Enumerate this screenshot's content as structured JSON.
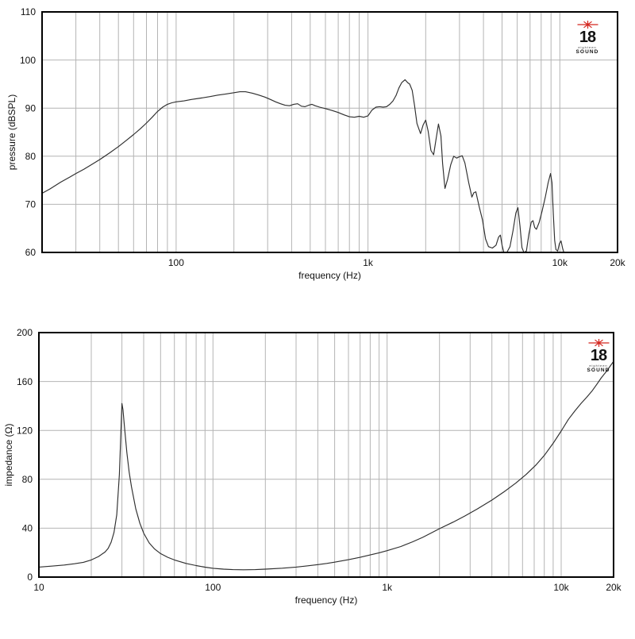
{
  "page": {
    "background": "#ffffff"
  },
  "logo": {
    "number": "18",
    "tagline": "eighteen",
    "brand": "SOUND",
    "star_color": "#d4261f",
    "text_color": "#121212"
  },
  "chart_data": [
    {
      "id": "pressure",
      "type": "line",
      "xlabel": "frequency (Hz)",
      "ylabel": "pressure (dBSPL)",
      "x_scale": "log",
      "xlim": [
        20,
        20000
      ],
      "ylim": [
        60,
        110
      ],
      "y_ticks": [
        60,
        70,
        80,
        90,
        100,
        110
      ],
      "x_tick_labels": [
        {
          "value": 100,
          "label": "100"
        },
        {
          "value": 1000,
          "label": "1k"
        },
        {
          "value": 10000,
          "label": "10k"
        },
        {
          "value": 20000,
          "label": "20k"
        }
      ],
      "grid": true,
      "grid_color": "#b4b4b4",
      "line_color": "#2e2e2e",
      "series": [
        {
          "name": "pressure",
          "points": [
            [
              20,
              72.3
            ],
            [
              22,
              73.2
            ],
            [
              25,
              74.6
            ],
            [
              28,
              75.7
            ],
            [
              30,
              76.4
            ],
            [
              33,
              77.3
            ],
            [
              36,
              78.2
            ],
            [
              40,
              79.3
            ],
            [
              45,
              80.7
            ],
            [
              50,
              82.0
            ],
            [
              55,
              83.3
            ],
            [
              60,
              84.5
            ],
            [
              65,
              85.7
            ],
            [
              70,
              86.9
            ],
            [
              75,
              88.1
            ],
            [
              80,
              89.3
            ],
            [
              85,
              90.2
            ],
            [
              90,
              90.8
            ],
            [
              95,
              91.1
            ],
            [
              100,
              91.3
            ],
            [
              110,
              91.5
            ],
            [
              120,
              91.8
            ],
            [
              135,
              92.1
            ],
            [
              150,
              92.4
            ],
            [
              165,
              92.7
            ],
            [
              180,
              92.9
            ],
            [
              200,
              93.2
            ],
            [
              215,
              93.4
            ],
            [
              230,
              93.4
            ],
            [
              250,
              93.1
            ],
            [
              270,
              92.7
            ],
            [
              290,
              92.3
            ],
            [
              310,
              91.8
            ],
            [
              330,
              91.3
            ],
            [
              350,
              90.9
            ],
            [
              370,
              90.6
            ],
            [
              390,
              90.5
            ],
            [
              410,
              90.8
            ],
            [
              430,
              90.9
            ],
            [
              450,
              90.4
            ],
            [
              470,
              90.3
            ],
            [
              490,
              90.6
            ],
            [
              510,
              90.8
            ],
            [
              530,
              90.5
            ],
            [
              560,
              90.2
            ],
            [
              600,
              89.9
            ],
            [
              650,
              89.5
            ],
            [
              700,
              89.1
            ],
            [
              750,
              88.6
            ],
            [
              800,
              88.2
            ],
            [
              850,
              88.1
            ],
            [
              900,
              88.3
            ],
            [
              950,
              88.1
            ],
            [
              1000,
              88.4
            ],
            [
              1050,
              89.6
            ],
            [
              1100,
              90.2
            ],
            [
              1150,
              90.3
            ],
            [
              1200,
              90.2
            ],
            [
              1250,
              90.3
            ],
            [
              1300,
              90.8
            ],
            [
              1350,
              91.5
            ],
            [
              1400,
              92.6
            ],
            [
              1450,
              94.2
            ],
            [
              1500,
              95.3
            ],
            [
              1560,
              95.9
            ],
            [
              1610,
              95.3
            ],
            [
              1650,
              95.0
            ],
            [
              1700,
              93.7
            ],
            [
              1750,
              90.5
            ],
            [
              1800,
              86.8
            ],
            [
              1880,
              84.7
            ],
            [
              1940,
              86.5
            ],
            [
              2000,
              87.5
            ],
            [
              2060,
              85.2
            ],
            [
              2130,
              81.2
            ],
            [
              2200,
              80.3
            ],
            [
              2270,
              83.8
            ],
            [
              2330,
              86.7
            ],
            [
              2400,
              84.2
            ],
            [
              2450,
              78.5
            ],
            [
              2520,
              73.3
            ],
            [
              2600,
              75.2
            ],
            [
              2700,
              78.2
            ],
            [
              2800,
              80.0
            ],
            [
              2900,
              79.6
            ],
            [
              3000,
              79.9
            ],
            [
              3100,
              80.1
            ],
            [
              3200,
              78.6
            ],
            [
              3350,
              74.5
            ],
            [
              3480,
              71.5
            ],
            [
              3560,
              72.4
            ],
            [
              3650,
              72.6
            ],
            [
              3800,
              69.5
            ],
            [
              3950,
              66.8
            ],
            [
              4100,
              62.8
            ],
            [
              4250,
              61.2
            ],
            [
              4450,
              60.9
            ],
            [
              4650,
              61.5
            ],
            [
              4800,
              63.2
            ],
            [
              4900,
              63.6
            ],
            [
              5000,
              61.5
            ],
            [
              5100,
              60.1
            ],
            [
              5300,
              60.0
            ],
            [
              5500,
              61.2
            ],
            [
              5700,
              64.5
            ],
            [
              5900,
              68.2
            ],
            [
              6050,
              69.3
            ],
            [
              6200,
              65.5
            ],
            [
              6350,
              61.0
            ],
            [
              6500,
              60.0
            ],
            [
              6700,
              60.3
            ],
            [
              6900,
              63.8
            ],
            [
              7100,
              66.3
            ],
            [
              7250,
              66.6
            ],
            [
              7400,
              65.2
            ],
            [
              7550,
              64.8
            ],
            [
              7800,
              66.2
            ],
            [
              8100,
              68.7
            ],
            [
              8400,
              71.5
            ],
            [
              8700,
              74.5
            ],
            [
              8950,
              76.4
            ],
            [
              9100,
              74.5
            ],
            [
              9250,
              68.0
            ],
            [
              9400,
              62.5
            ],
            [
              9550,
              60.6
            ],
            [
              9750,
              60.3
            ],
            [
              9950,
              61.8
            ],
            [
              10150,
              62.4
            ],
            [
              10350,
              60.8
            ],
            [
              10500,
              60.0
            ]
          ]
        }
      ]
    },
    {
      "id": "impedance",
      "type": "line",
      "xlabel": "frequency (Hz)",
      "ylabel": "impedance (Ω)",
      "x_scale": "log",
      "xlim": [
        10,
        20000
      ],
      "ylim": [
        0,
        200
      ],
      "y_ticks": [
        0,
        40,
        80,
        120,
        160,
        200
      ],
      "x_tick_labels": [
        {
          "value": 10,
          "label": "10"
        },
        {
          "value": 100,
          "label": "100"
        },
        {
          "value": 1000,
          "label": "1k"
        },
        {
          "value": 10000,
          "label": "10k"
        },
        {
          "value": 20000,
          "label": "20k"
        }
      ],
      "grid": true,
      "grid_color": "#b4b4b4",
      "line_color": "#2e2e2e",
      "series": [
        {
          "name": "impedance",
          "points": [
            [
              10,
              8.2
            ],
            [
              12,
              9.0
            ],
            [
              14,
              9.9
            ],
            [
              16,
              10.9
            ],
            [
              18,
              12.1
            ],
            [
              20,
              14.0
            ],
            [
              22,
              16.8
            ],
            [
              24,
              20.5
            ],
            [
              25,
              23.5
            ],
            [
              26,
              28.5
            ],
            [
              27,
              36.5
            ],
            [
              28,
              51
            ],
            [
              29,
              84
            ],
            [
              29.6,
              120
            ],
            [
              30,
              142
            ],
            [
              30.4,
              137
            ],
            [
              31,
              123
            ],
            [
              32,
              102
            ],
            [
              33,
              86
            ],
            [
              34,
              74
            ],
            [
              36,
              56
            ],
            [
              38,
              44
            ],
            [
              40,
              36
            ],
            [
              43,
              28
            ],
            [
              46,
              23.2
            ],
            [
              50,
              19.2
            ],
            [
              55,
              16.2
            ],
            [
              60,
              14.0
            ],
            [
              70,
              11.2
            ],
            [
              80,
              9.4
            ],
            [
              90,
              8.1
            ],
            [
              100,
              7.2
            ],
            [
              115,
              6.5
            ],
            [
              130,
              6.1
            ],
            [
              150,
              6.0
            ],
            [
              175,
              6.1
            ],
            [
              200,
              6.5
            ],
            [
              250,
              7.3
            ],
            [
              300,
              8.2
            ],
            [
              350,
              9.2
            ],
            [
              400,
              10.2
            ],
            [
              450,
              11.2
            ],
            [
              500,
              12.2
            ],
            [
              600,
              14.2
            ],
            [
              700,
              16.2
            ],
            [
              800,
              18.1
            ],
            [
              900,
              19.9
            ],
            [
              1000,
              21.6
            ],
            [
              1200,
              25.0
            ],
            [
              1400,
              28.8
            ],
            [
              1600,
              32.5
            ],
            [
              1800,
              36.2
            ],
            [
              2000,
              39.6
            ],
            [
              2400,
              45.0
            ],
            [
              2800,
              50.0
            ],
            [
              3300,
              55.8
            ],
            [
              4000,
              63.0
            ],
            [
              4700,
              69.8
            ],
            [
              5500,
              77.0
            ],
            [
              6300,
              84.0
            ],
            [
              7200,
              92.0
            ],
            [
              8000,
              99.5
            ],
            [
              9000,
              109.5
            ],
            [
              10000,
              119.5
            ],
            [
              11000,
              129
            ],
            [
              12000,
              136
            ],
            [
              13000,
              142
            ],
            [
              14000,
              147
            ],
            [
              15000,
              152
            ],
            [
              16000,
              157.5
            ],
            [
              17000,
              163
            ],
            [
              18000,
              167.5
            ],
            [
              19000,
              172
            ],
            [
              20000,
              176.5
            ]
          ]
        }
      ]
    }
  ]
}
